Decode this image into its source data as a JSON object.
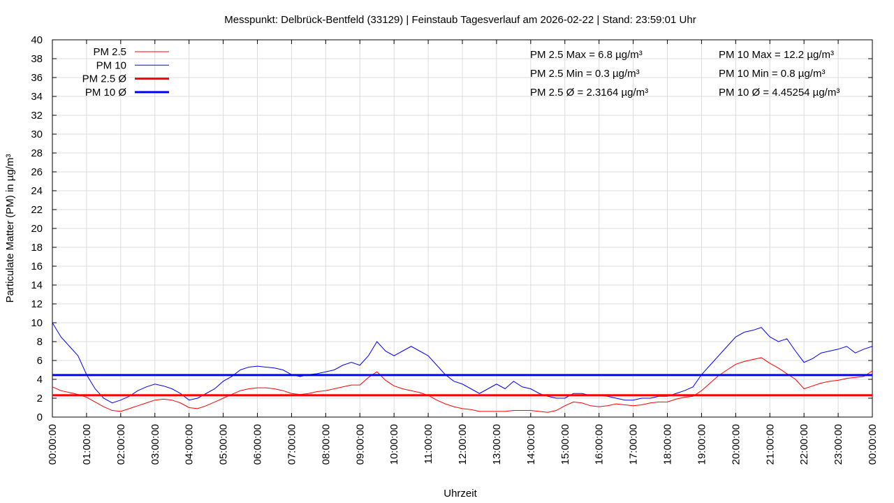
{
  "chart_data": {
    "type": "line",
    "title": "Messpunkt: Delbrück-Bentfeld (33129) | Feinstaub Tagesverlauf am 2026-02-22 | Stand: 23:59:01 Uhr",
    "xlabel": "Uhrzeit",
    "ylabel": "Particulate Matter (PM) in µg/m³",
    "xlim": [
      0,
      24
    ],
    "ylim": [
      0,
      40
    ],
    "yticks": [
      0,
      2,
      4,
      6,
      8,
      10,
      12,
      14,
      16,
      18,
      20,
      22,
      24,
      26,
      28,
      30,
      32,
      34,
      36,
      38,
      40
    ],
    "xticks": [
      {
        "value": 0,
        "label": "00:00:00"
      },
      {
        "value": 1,
        "label": "01:00:00"
      },
      {
        "value": 2,
        "label": "02:00:00"
      },
      {
        "value": 3,
        "label": "03:00:00"
      },
      {
        "value": 4,
        "label": "04:00:00"
      },
      {
        "value": 5,
        "label": "05:00:00"
      },
      {
        "value": 6,
        "label": "06:00:00"
      },
      {
        "value": 7,
        "label": "07:00:00"
      },
      {
        "value": 8,
        "label": "08:00:00"
      },
      {
        "value": 9,
        "label": "09:00:00"
      },
      {
        "value": 10,
        "label": "10:00:00"
      },
      {
        "value": 11,
        "label": "11:00:00"
      },
      {
        "value": 12,
        "label": "12:00:00"
      },
      {
        "value": 13,
        "label": "13:00:00"
      },
      {
        "value": 14,
        "label": "14:00:00"
      },
      {
        "value": 15,
        "label": "15:00:00"
      },
      {
        "value": 16,
        "label": "16:00:00"
      },
      {
        "value": 17,
        "label": "17:00:00"
      },
      {
        "value": 18,
        "label": "18:00:00"
      },
      {
        "value": 19,
        "label": "19:00:00"
      },
      {
        "value": 20,
        "label": "20:00:00"
      },
      {
        "value": 21,
        "label": "21:00:00"
      },
      {
        "value": 22,
        "label": "22:00:00"
      },
      {
        "value": 23,
        "label": "23:00:00"
      },
      {
        "value": 24,
        "label": "00:00:00"
      }
    ],
    "grid": true,
    "legend": "upper left",
    "x": [
      0,
      0.25,
      0.5,
      0.75,
      1,
      1.25,
      1.5,
      1.75,
      2,
      2.25,
      2.5,
      2.75,
      3,
      3.25,
      3.5,
      3.75,
      4,
      4.25,
      4.5,
      4.75,
      5,
      5.25,
      5.5,
      5.75,
      6,
      6.25,
      6.5,
      6.75,
      7,
      7.25,
      7.5,
      7.75,
      8,
      8.25,
      8.5,
      8.75,
      9,
      9.25,
      9.5,
      9.75,
      10,
      10.25,
      10.5,
      10.75,
      11,
      11.25,
      11.5,
      11.75,
      12,
      12.25,
      12.5,
      12.75,
      13,
      13.25,
      13.5,
      13.75,
      14,
      14.25,
      14.5,
      14.75,
      15,
      15.25,
      15.5,
      15.75,
      16,
      16.25,
      16.5,
      16.75,
      17,
      17.25,
      17.5,
      17.75,
      18,
      18.25,
      18.5,
      18.75,
      19,
      19.25,
      19.5,
      19.75,
      20,
      20.25,
      20.5,
      20.75,
      21,
      21.25,
      21.5,
      21.75,
      22,
      22.25,
      22.5,
      22.75,
      23,
      23.25,
      23.5,
      23.75,
      24
    ],
    "series": [
      {
        "name": "PM 2.5",
        "color": "#ff0000",
        "width": 1,
        "values": [
          3.2,
          2.8,
          2.6,
          2.4,
          2.1,
          1.6,
          1.1,
          0.7,
          0.6,
          0.9,
          1.2,
          1.5,
          1.8,
          1.9,
          1.8,
          1.5,
          1.0,
          0.9,
          1.2,
          1.6,
          2.0,
          2.4,
          2.8,
          3.0,
          3.1,
          3.1,
          3.0,
          2.8,
          2.5,
          2.4,
          2.5,
          2.7,
          2.8,
          3.0,
          3.2,
          3.4,
          3.4,
          4.2,
          4.8,
          3.9,
          3.3,
          3.0,
          2.8,
          2.6,
          2.3,
          1.8,
          1.4,
          1.1,
          0.9,
          0.8,
          0.6,
          0.6,
          0.6,
          0.6,
          0.7,
          0.7,
          0.7,
          0.6,
          0.5,
          0.7,
          1.2,
          1.6,
          1.5,
          1.2,
          1.1,
          1.2,
          1.4,
          1.3,
          1.2,
          1.3,
          1.5,
          1.6,
          1.6,
          1.9,
          2.1,
          2.2,
          2.8,
          3.6,
          4.4,
          5.0,
          5.6,
          5.9,
          6.1,
          6.3,
          5.7,
          5.2,
          4.6,
          4.0,
          3.0,
          3.3,
          3.6,
          3.8,
          3.9,
          4.1,
          4.2,
          4.3,
          4.9
        ]
      },
      {
        "name": "PM 10",
        "color": "#0000ff",
        "width": 1,
        "values": [
          10,
          8.5,
          7.5,
          6.5,
          4.5,
          3,
          2,
          1.5,
          1.8,
          2.2,
          2.8,
          3.2,
          3.5,
          3.3,
          3,
          2.5,
          1.8,
          2,
          2.5,
          3,
          3.8,
          4.3,
          5,
          5.3,
          5.4,
          5.3,
          5.2,
          5,
          4.5,
          4.3,
          4.5,
          4.6,
          4.8,
          5,
          5.5,
          5.8,
          5.5,
          6.5,
          8,
          7,
          6.5,
          7,
          7.5,
          7,
          6.5,
          5.5,
          4.5,
          3.8,
          3.5,
          3,
          2.5,
          3,
          3.5,
          3,
          3.8,
          3.2,
          3,
          2.5,
          2.2,
          2,
          2,
          2.5,
          2.5,
          2.3,
          2.3,
          2.2,
          2,
          1.8,
          1.8,
          2,
          2,
          2.2,
          2.2,
          2.5,
          2.8,
          3.2,
          4.5,
          5.5,
          6.5,
          7.5,
          8.5,
          9,
          9.2,
          9.5,
          8.5,
          8,
          8.3,
          7,
          5.8,
          6.2,
          6.8,
          7,
          7.2,
          7.5,
          6.8,
          7.2,
          7.5
        ]
      },
      {
        "name": "PM 2.5 Ø",
        "color": "#ff0000",
        "width": 3,
        "value": 2.3164
      },
      {
        "name": "PM 10 Ø",
        "color": "#0000ff",
        "width": 3,
        "value": 4.45254
      }
    ],
    "annotations": [
      {
        "text": "PM 2.5 Max = 6.8 µg/m³",
        "color": "#ff0000"
      },
      {
        "text": "PM 2.5 Min = 0.3 µg/m³",
        "color": "#ff0000"
      },
      {
        "text": "PM 2.5 Ø = 2.3164 µg/m³",
        "color": "#ff0000"
      },
      {
        "text": "PM 10 Max = 12.2 µg/m³",
        "color": "#0000ff"
      },
      {
        "text": "PM 10 Min = 0.8 µg/m³",
        "color": "#0000ff"
      },
      {
        "text": "PM 10 Ø = 4.45254 µg/m³",
        "color": "#0000ff"
      }
    ]
  }
}
